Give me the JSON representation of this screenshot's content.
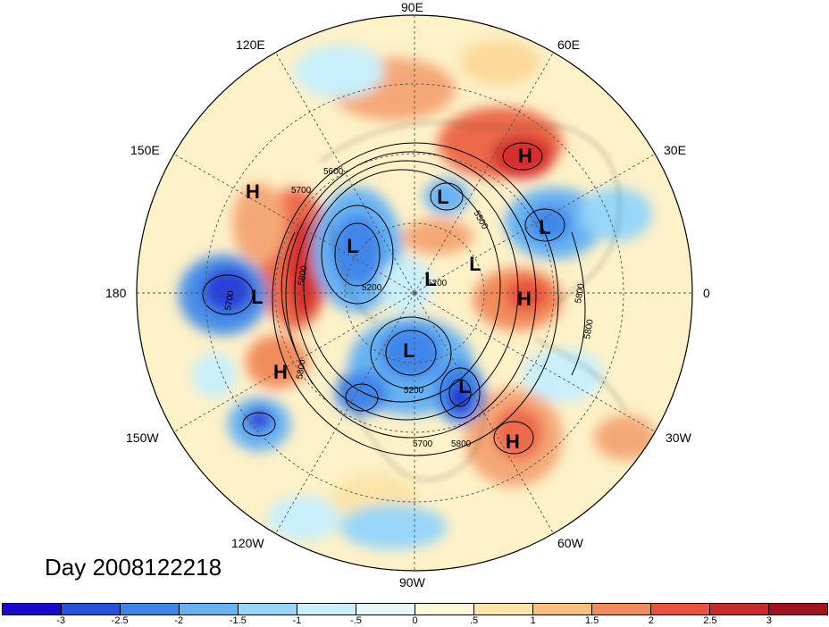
{
  "title_text": "Day 2008122218",
  "longitude_labels": {
    "top": "90E",
    "lon120e": "120E",
    "lon60e": "60E",
    "lon150e": "150E",
    "lon30e": "30E",
    "left": "180",
    "right": "0",
    "lon150w": "150W",
    "lon30w": "30W",
    "lon120w": "120W",
    "lon60w": "60W",
    "bottom": "90W"
  },
  "pressure_systems": [
    {
      "label": "H",
      "name": "high-siberia"
    },
    {
      "label": "L",
      "name": "low-kara"
    },
    {
      "label": "L",
      "name": "low-caspian"
    },
    {
      "label": "H",
      "name": "high-east-siberia"
    },
    {
      "label": "L",
      "name": "low-east-asia"
    },
    {
      "label": "L",
      "name": "low-arctic"
    },
    {
      "label": "L",
      "name": "low-barents"
    },
    {
      "label": "H",
      "name": "high-europe"
    },
    {
      "label": "L",
      "name": "low-aleutian"
    },
    {
      "label": "L",
      "name": "low-canada"
    },
    {
      "label": "H",
      "name": "high-pacific"
    },
    {
      "label": "L",
      "name": "low-labrador"
    },
    {
      "label": "H",
      "name": "high-atlantic"
    }
  ],
  "contour_labels": [
    "5600",
    "5700",
    "5800",
    "5200",
    "5700",
    "5800",
    "5800",
    "5200",
    "5500",
    "5700",
    "5800",
    "5800",
    "5200"
  ],
  "colorbar": {
    "colors": [
      "#1a0ad0",
      "#2a50e0",
      "#3f86ea",
      "#67b2f3",
      "#97d6f8",
      "#c8effb",
      "#e6f8fc",
      "#fdf8d8",
      "#fbe4a8",
      "#f9bf7c",
      "#f28c5c",
      "#e8523e",
      "#cc2a2a",
      "#a3121c"
    ],
    "tick_labels": [
      "-3",
      "-2.5",
      "-2",
      "-1.5",
      "-1",
      "-.5",
      "0",
      ".5",
      "1",
      "1.5",
      "2",
      "2.5",
      "3"
    ]
  }
}
